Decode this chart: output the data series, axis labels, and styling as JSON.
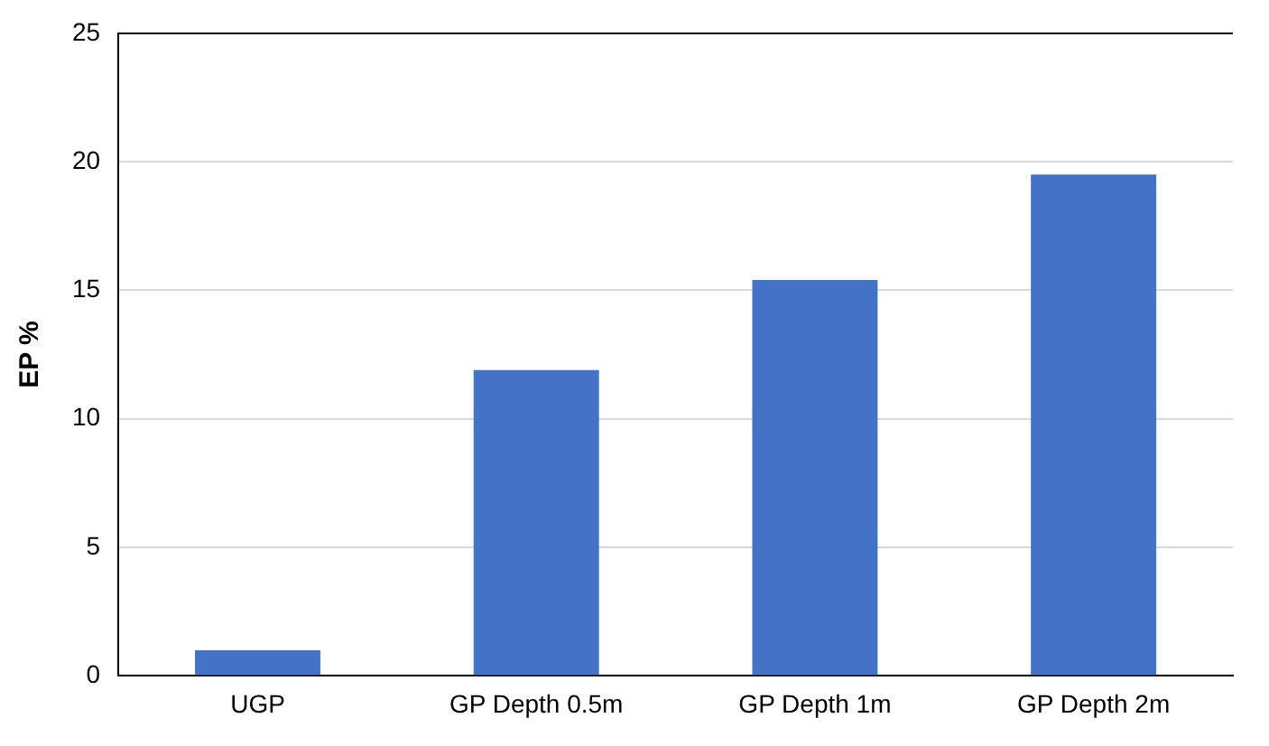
{
  "chart_data": {
    "type": "bar",
    "ylabel": "EP %",
    "categories": [
      "UGP",
      "GP Depth 0.5m",
      "GP Depth 1m",
      "GP Depth 2m"
    ],
    "values": [
      1.0,
      11.9,
      15.4,
      19.5
    ],
    "color": "#4472c4",
    "ylim": [
      0,
      25
    ],
    "yticks": [
      0,
      5,
      10,
      15,
      20,
      25
    ],
    "grid": "y",
    "legend": false
  }
}
